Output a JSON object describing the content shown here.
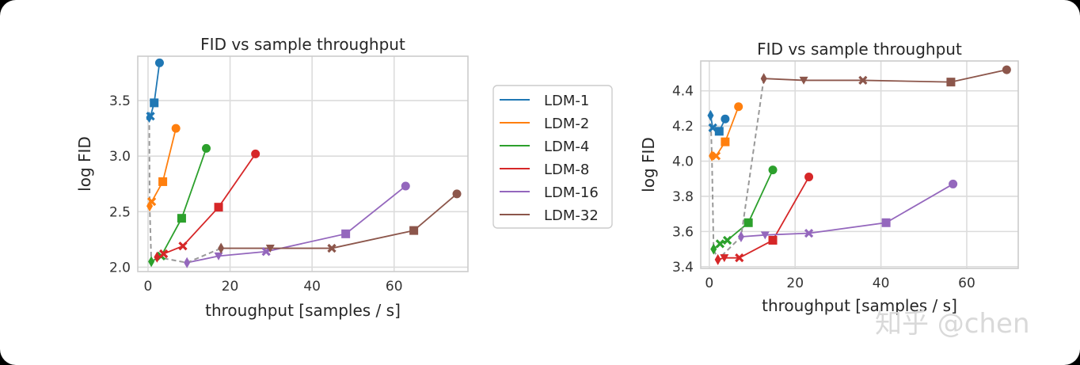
{
  "watermark": "知乎 @chen",
  "chart_data": [
    {
      "type": "line",
      "title": "FID vs sample throughput",
      "xlabel": "throughput [samples / s]",
      "ylabel": "log FID",
      "xlim": [
        -2.5,
        78
      ],
      "ylim": [
        1.96,
        3.9
      ],
      "xticks": [
        0,
        20,
        40,
        60
      ],
      "xtick_labels": [
        "0",
        "20",
        "40",
        "60"
      ],
      "yticks": [
        2.0,
        2.5,
        3.0,
        3.5
      ],
      "ytick_labels": [
        "2.0",
        "2.5",
        "3.0",
        "3.5"
      ],
      "grid": true,
      "legend": "outside-right",
      "series": [
        {
          "name": "LDM-1",
          "color": "#1f77b4",
          "x": [
            0.3,
            0.6,
            1.5,
            2.8
          ],
          "y": [
            3.35,
            3.36,
            3.48,
            3.84
          ],
          "markers": [
            "thin_diamond",
            "x",
            "square",
            "circle"
          ]
        },
        {
          "name": "LDM-2",
          "color": "#ff7f0e",
          "x": [
            0.4,
            0.9,
            3.6,
            6.8
          ],
          "y": [
            2.55,
            2.59,
            2.77,
            3.25
          ],
          "markers": [
            "thin_diamond",
            "x",
            "square",
            "circle"
          ]
        },
        {
          "name": "LDM-4",
          "color": "#2ca02c",
          "x": [
            0.8,
            3.2,
            8.2,
            14.2
          ],
          "y": [
            2.05,
            2.1,
            2.44,
            3.07
          ],
          "markers": [
            "thin_diamond",
            "x",
            "square",
            "circle"
          ]
        },
        {
          "name": "LDM-8",
          "color": "#d62728",
          "x": [
            2.2,
            3.8,
            8.5,
            17.2,
            26.2
          ],
          "y": [
            2.09,
            2.12,
            2.19,
            2.54,
            3.02
          ],
          "markers": [
            "thin_diamond",
            "x",
            "x",
            "square",
            "circle"
          ]
        },
        {
          "name": "LDM-16",
          "color": "#9467bd",
          "x": [
            9.5,
            17.2,
            28.8,
            48.2,
            62.8
          ],
          "y": [
            2.04,
            2.1,
            2.14,
            2.3,
            2.73
          ],
          "markers": [
            "thin_diamond",
            "triangle_down",
            "x",
            "square",
            "circle"
          ]
        },
        {
          "name": "LDM-32",
          "color": "#8c564b",
          "x": [
            17.8,
            29.8,
            44.8,
            64.8,
            75.3
          ],
          "y": [
            2.17,
            2.17,
            2.17,
            2.33,
            2.66
          ],
          "markers": [
            "thin_diamond",
            "triangle_down",
            "x",
            "square",
            "circle"
          ]
        }
      ],
      "dashed_path": {
        "color": "#999999",
        "x": [
          0.3,
          0.4,
          0.8,
          2.2,
          9.5,
          17.8
        ],
        "y": [
          3.35,
          2.55,
          2.05,
          2.09,
          2.04,
          2.17
        ]
      }
    },
    {
      "type": "line",
      "title": "FID vs sample throughput",
      "xlabel": "throughput [samples / s]",
      "ylabel": "log FID",
      "xlim": [
        -2,
        72
      ],
      "ylim": [
        3.39,
        4.57
      ],
      "xticks": [
        0,
        20,
        40,
        60
      ],
      "xtick_labels": [
        "0",
        "20",
        "40",
        "60"
      ],
      "yticks": [
        3.4,
        3.6,
        3.8,
        4.0,
        4.2,
        4.4
      ],
      "ytick_labels": [
        "3.4",
        "3.6",
        "3.8",
        "4.0",
        "4.2",
        "4.4"
      ],
      "grid": true,
      "legend": "none",
      "series": [
        {
          "name": "LDM-1",
          "color": "#1f77b4",
          "x": [
            0.3,
            0.8,
            2.3,
            3.7
          ],
          "y": [
            4.26,
            4.19,
            4.17,
            4.24
          ],
          "markers": [
            "thin_diamond",
            "x",
            "square",
            "circle"
          ]
        },
        {
          "name": "LDM-2",
          "color": "#ff7f0e",
          "x": [
            0.6,
            1.6,
            3.7,
            6.8
          ],
          "y": [
            4.03,
            4.03,
            4.11,
            4.31
          ],
          "markers": [
            "thin_diamond",
            "x",
            "square",
            "circle"
          ]
        },
        {
          "name": "LDM-4",
          "color": "#2ca02c",
          "x": [
            1.0,
            2.5,
            4.2,
            9.1,
            14.8
          ],
          "y": [
            3.5,
            3.53,
            3.55,
            3.65,
            3.95
          ],
          "markers": [
            "thin_diamond",
            "x",
            "x",
            "square",
            "circle"
          ]
        },
        {
          "name": "LDM-8",
          "color": "#d62728",
          "x": [
            2.0,
            3.5,
            7.0,
            14.8,
            23.2
          ],
          "y": [
            3.44,
            3.45,
            3.45,
            3.55,
            3.91
          ],
          "markers": [
            "thin_diamond",
            "triangle_down",
            "x",
            "square",
            "circle"
          ]
        },
        {
          "name": "LDM-16",
          "color": "#9467bd",
          "x": [
            7.4,
            13.0,
            23.2,
            41.2,
            56.8
          ],
          "y": [
            3.57,
            3.58,
            3.59,
            3.65,
            3.87
          ],
          "markers": [
            "thin_diamond",
            "triangle_down",
            "x",
            "square",
            "circle"
          ]
        },
        {
          "name": "LDM-32",
          "color": "#8c564b",
          "x": [
            12.7,
            22.0,
            35.8,
            56.3,
            69.3
          ],
          "y": [
            4.47,
            4.46,
            4.46,
            4.45,
            4.52
          ],
          "markers": [
            "thin_diamond",
            "triangle_down",
            "x",
            "square",
            "circle"
          ]
        }
      ],
      "dashed_path": {
        "color": "#999999",
        "x": [
          0.3,
          0.6,
          1.0,
          2.0,
          7.4,
          12.7
        ],
        "y": [
          4.26,
          4.03,
          3.5,
          3.44,
          3.57,
          4.47
        ]
      }
    }
  ]
}
